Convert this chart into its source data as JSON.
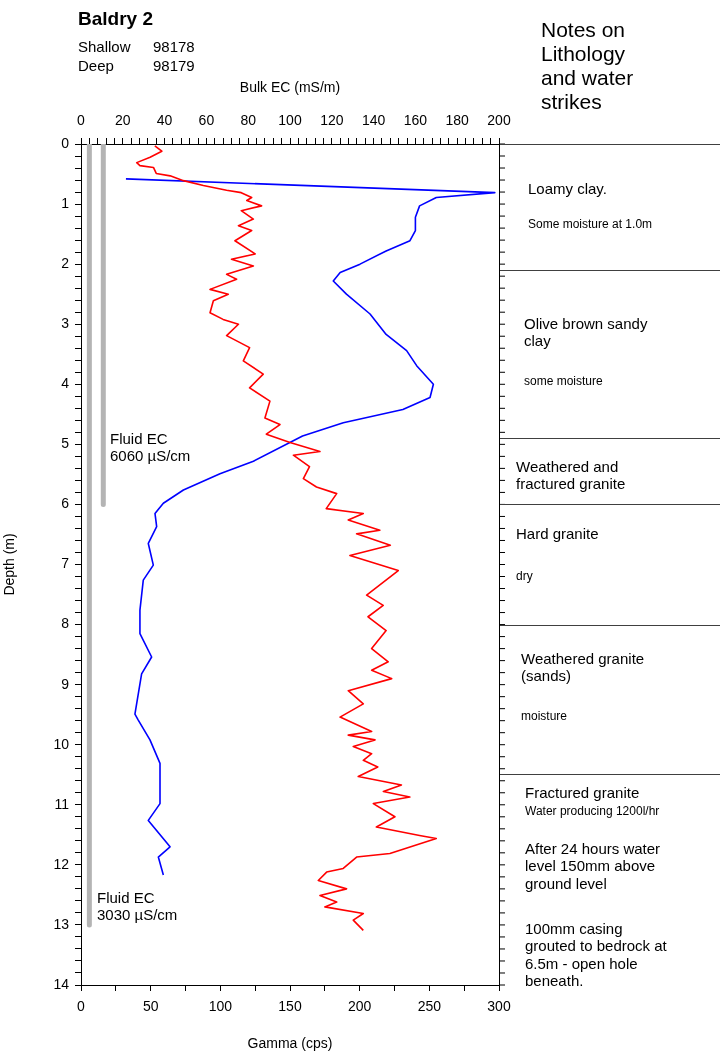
{
  "chart_data": {
    "type": "line",
    "title": "Baldry 2",
    "subtitle": "Shallow 98178\nDeep 98179",
    "xlabel": "Gamma (cps)",
    "x2label": "Bulk EC (mS/m)",
    "ylabel": "Depth (m)",
    "xlim": [
      0,
      300
    ],
    "xticks": [
      0,
      {
        "value": 25,
        "label": null
      },
      50,
      {
        "value": 75,
        "label": null
      },
      100,
      {
        "value": 125,
        "label": null
      },
      150,
      {
        "value": 175,
        "label": null
      },
      200,
      {
        "value": 225,
        "label": null
      },
      250,
      {
        "value": 275,
        "label": null
      },
      300
    ],
    "x2lim": [
      0,
      200
    ],
    "x2ticks": [
      0,
      {
        "value": 4,
        "label": null
      },
      {
        "value": 8,
        "label": null
      },
      {
        "value": 12,
        "label": null
      },
      {
        "value": 16,
        "label": null
      },
      20,
      {
        "value": 24,
        "label": null
      },
      {
        "value": 28,
        "label": null
      },
      {
        "value": 32,
        "label": null
      },
      {
        "value": 36,
        "label": null
      },
      40,
      {
        "value": 44,
        "label": null
      },
      {
        "value": 48,
        "label": null
      },
      {
        "value": 52,
        "label": null
      },
      {
        "value": 56,
        "label": null
      },
      60,
      {
        "value": 64,
        "label": null
      },
      {
        "value": 68,
        "label": null
      },
      {
        "value": 72,
        "label": null
      },
      {
        "value": 76,
        "label": null
      },
      80,
      {
        "value": 84,
        "label": null
      },
      {
        "value": 88,
        "label": null
      },
      {
        "value": 92,
        "label": null
      },
      {
        "value": 96,
        "label": null
      },
      100,
      {
        "value": 104,
        "label": null
      },
      {
        "value": 108,
        "label": null
      },
      {
        "value": 112,
        "label": null
      },
      {
        "value": 116,
        "label": null
      },
      120,
      {
        "value": 124,
        "label": null
      },
      {
        "value": 128,
        "label": null
      },
      {
        "value": 132,
        "label": null
      },
      {
        "value": 136,
        "label": null
      },
      140,
      {
        "value": 144,
        "label": null
      },
      {
        "value": 148,
        "label": null
      },
      {
        "value": 152,
        "label": null
      },
      {
        "value": 156,
        "label": null
      },
      160,
      {
        "value": 164,
        "label": null
      },
      {
        "value": 168,
        "label": null
      },
      {
        "value": 172,
        "label": null
      },
      {
        "value": 176,
        "label": null
      },
      180,
      {
        "value": 184,
        "label": null
      },
      {
        "value": 188,
        "label": null
      },
      {
        "value": 192,
        "label": null
      },
      {
        "value": 196,
        "label": null
      },
      200
    ],
    "ylim": [
      14,
      0
    ],
    "yticks": [
      0,
      {
        "value": 0.2,
        "label": null
      },
      {
        "value": 0.4,
        "label": null
      },
      {
        "value": 0.6,
        "label": null
      },
      {
        "value": 0.8,
        "label": null
      },
      1,
      {
        "value": 1.2,
        "label": null
      },
      {
        "value": 1.4,
        "label": null
      },
      {
        "value": 1.6,
        "label": null
      },
      {
        "value": 1.8,
        "label": null
      },
      2,
      {
        "value": 2.2,
        "label": null
      },
      {
        "value": 2.4,
        "label": null
      },
      {
        "value": 2.6,
        "label": null
      },
      {
        "value": 2.8,
        "label": null
      },
      3,
      {
        "value": 3.2,
        "label": null
      },
      {
        "value": 3.4,
        "label": null
      },
      {
        "value": 3.6,
        "label": null
      },
      {
        "value": 3.8,
        "label": null
      },
      4,
      {
        "value": 4.2,
        "label": null
      },
      {
        "value": 4.4,
        "label": null
      },
      {
        "value": 4.6,
        "label": null
      },
      {
        "value": 4.8,
        "label": null
      },
      5,
      {
        "value": 5.2,
        "label": null
      },
      {
        "value": 5.4,
        "label": null
      },
      {
        "value": 5.6,
        "label": null
      },
      {
        "value": 5.8,
        "label": null
      },
      6,
      {
        "value": 6.2,
        "label": null
      },
      {
        "value": 6.4,
        "label": null
      },
      {
        "value": 6.6,
        "label": null
      },
      {
        "value": 6.8,
        "label": null
      },
      7,
      {
        "value": 7.2,
        "label": null
      },
      {
        "value": 7.4,
        "label": null
      },
      {
        "value": 7.6,
        "label": null
      },
      {
        "value": 7.8,
        "label": null
      },
      8,
      {
        "value": 8.2,
        "label": null
      },
      {
        "value": 8.4,
        "label": null
      },
      {
        "value": 8.6,
        "label": null
      },
      {
        "value": 8.8,
        "label": null
      },
      9,
      {
        "value": 9.2,
        "label": null
      },
      {
        "value": 9.4,
        "label": null
      },
      {
        "value": 9.6,
        "label": null
      },
      {
        "value": 9.8,
        "label": null
      },
      10,
      {
        "value": 10.2,
        "label": null
      },
      {
        "value": 10.4,
        "label": null
      },
      {
        "value": 10.6,
        "label": null
      },
      {
        "value": 10.8,
        "label": null
      },
      11,
      {
        "value": 11.2,
        "label": null
      },
      {
        "value": 11.4,
        "label": null
      },
      {
        "value": 11.6,
        "label": null
      },
      {
        "value": 11.8,
        "label": null
      },
      12,
      {
        "value": 12.2,
        "label": null
      },
      {
        "value": 12.4,
        "label": null
      },
      {
        "value": 12.6,
        "label": null
      },
      {
        "value": 12.8,
        "label": null
      },
      13,
      {
        "value": 13.2,
        "label": null
      },
      {
        "value": 13.4,
        "label": null
      },
      {
        "value": 13.6,
        "label": null
      },
      {
        "value": 13.8,
        "label": null
      },
      14
    ],
    "grid": false,
    "legend": false,
    "marker": "none",
    "series": [
      {
        "color": "#ff0000",
        "x": [
          53,
          58,
          49.6,
          40,
          42.3,
          52,
          54,
          64,
          73.5,
          87.8,
          104.5,
          115,
          122.5,
          119,
          129.6,
          115,
          123.7,
          113,
          122.5,
          110.5,
          125,
          108,
          123.7,
          104.5,
          111.7,
          92.6,
          105.7,
          95,
          92.6,
          102,
          113,
          104.5,
          121,
          116.5,
          130.8,
          121,
          135.6,
          132,
          142.8,
          133,
          150,
          171.5,
          152.4,
          164,
          159.6,
          169,
          183.5,
          176,
          202.6,
          191.8,
          214.5,
          197.8,
          222,
          193,
          227.7,
          205,
          216.9,
          206,
          219,
          208.6,
          220.5,
          208.6,
          223,
          191.8,
          202.6,
          185.9,
          208.6,
          191.8,
          211,
          195.4,
          208.6,
          202.6,
          213,
          199,
          230,
          217,
          236,
          209.8,
          225.3,
          212,
          243,
          255,
          221.7,
          197.8,
          188.2,
          176.3,
          170.3,
          190.6,
          171.5,
          183.5,
          175,
          202.6,
          195.4,
          202.6
        ],
        "values": [
          0.03,
          0.12,
          0.22,
          0.31,
          0.36,
          0.39,
          0.49,
          0.53,
          0.61,
          0.69,
          0.77,
          0.81,
          0.89,
          0.94,
          1.03,
          1.11,
          1.25,
          1.36,
          1.44,
          1.61,
          1.83,
          1.92,
          2.03,
          2.17,
          2.25,
          2.42,
          2.5,
          2.61,
          2.81,
          2.92,
          3.0,
          3.19,
          3.39,
          3.61,
          3.83,
          4.06,
          4.28,
          4.56,
          4.67,
          4.83,
          4.97,
          5.12,
          5.18,
          5.37,
          5.57,
          5.71,
          5.82,
          6.07,
          6.15,
          6.26,
          6.43,
          6.49,
          6.68,
          6.85,
          7.1,
          7.51,
          7.68,
          7.87,
          8.1,
          8.4,
          8.62,
          8.76,
          8.9,
          9.1,
          9.32,
          9.54,
          9.78,
          9.84,
          9.92,
          10.03,
          10.15,
          10.26,
          10.37,
          10.53,
          10.67,
          10.78,
          10.87,
          10.98,
          11.2,
          11.37,
          11.51,
          11.56,
          11.81,
          11.87,
          12.06,
          12.12,
          12.26,
          12.4,
          12.51,
          12.62,
          12.7,
          12.81,
          12.92,
          13.09
        ]
      },
      {
        "color": "#0000ff",
        "axis": "x2",
        "x": [
          21.5,
          198,
          170,
          162,
          160,
          160,
          157.4,
          146,
          133.5,
          124,
          120.7,
          127,
          138.3,
          146,
          155.8,
          160.6,
          168.6,
          167,
          154,
          125.5,
          106,
          82.5,
          66.5,
          49,
          39.4,
          35.4,
          36.2,
          32.2,
          34.6,
          29.8,
          28.2,
          28.2,
          33.8,
          29,
          25.8,
          27.4,
          33,
          37.8,
          37.8,
          32.2,
          42.6,
          37,
          39.4
        ],
        "values": [
          0.58,
          0.81,
          0.89,
          1.03,
          1.22,
          1.44,
          1.61,
          1.78,
          2.0,
          2.14,
          2.28,
          2.5,
          2.83,
          3.17,
          3.44,
          3.69,
          4.0,
          4.22,
          4.42,
          4.64,
          4.86,
          5.28,
          5.49,
          5.76,
          5.98,
          6.15,
          6.37,
          6.65,
          7.01,
          7.26,
          7.76,
          8.15,
          8.54,
          8.82,
          9.49,
          9.59,
          9.92,
          10.31,
          10.98,
          11.26,
          11.7,
          11.87,
          12.17
        ]
      },
      {
        "color": "#b4b4b4",
        "x": [
          6,
          6
        ],
        "values": [
          0,
          13
        ]
      },
      {
        "color": "#b4b4b4",
        "x": [
          16,
          16
        ],
        "values": [
          0,
          6
        ]
      }
    ],
    "annotations": [
      "Notes on Lithology and water strikes",
      "Fluid EC\n6060 µS/cm",
      "Fluid EC\n3030 µS/cm",
      "Loamy clay.",
      "Some moisture at 1.0m",
      "Olive brown sandy clay",
      "some moisture",
      "Weathered and fractured granite",
      "Hard granite",
      "dry",
      "Weathered granite (sands)",
      "moisture",
      "Fractured granite",
      "Water producing 1200l/hr",
      "After 24 hours water level 150mm above ground level",
      "100mm casing grouted to bedrock at 6.5m - open hole beneath."
    ]
  }
}
